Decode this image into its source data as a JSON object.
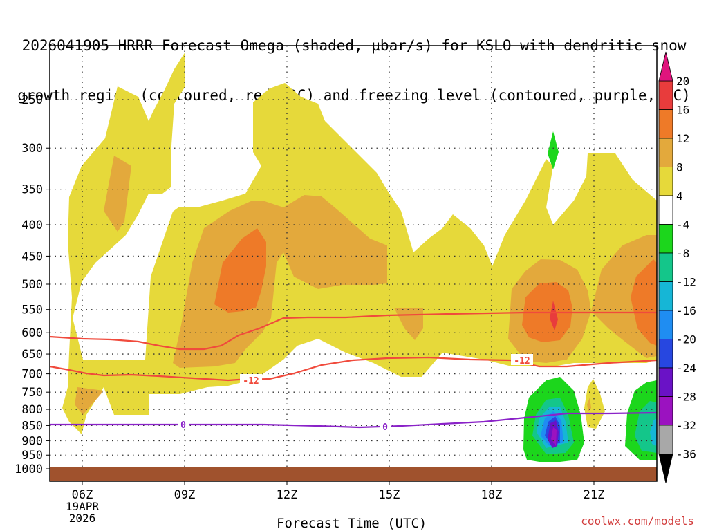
{
  "title_lines": [
    "2026041905 HRRR Forecast Omega (shaded, µbar/s) for KSLO with dendritic snow",
    "growth region (contoured, red, ºC) and freezing level (contoured, purple, ºC)"
  ],
  "credit": "coolwx.com/models",
  "chart_data": {
    "type": "heatmap",
    "title": "2026041905 HRRR Forecast Omega (shaded, µbar/s) for KSLO with dendritic snow growth region (contoured, red, ºC) and freezing level (contoured, purple, ºC)",
    "xlabel": "Forecast Time (UTC)",
    "ylabel": "",
    "x_ticks": [
      "06Z",
      "09Z",
      "12Z",
      "15Z",
      "18Z",
      "21Z"
    ],
    "x_tick_date": [
      "19APR",
      "2026"
    ],
    "y_ticks": [
      250,
      300,
      350,
      400,
      450,
      500,
      550,
      600,
      650,
      700,
      750,
      800,
      850,
      900,
      950,
      1000
    ],
    "y_scale": "log",
    "y_reversed": true,
    "colorbar": {
      "levels": [
        20,
        16,
        12,
        8,
        4,
        -4,
        -8,
        -12,
        -16,
        -20,
        -24,
        -28,
        -32,
        -36
      ],
      "colors": [
        "#e83c3c",
        "#ee7a28",
        "#e3a93c",
        "#e6d93a",
        "#ffffff",
        "#1cd61c",
        "#14c68a",
        "#16b6d6",
        "#1f8df2",
        "#2747e0",
        "#6a12c6",
        "#9b12c0",
        "#a8a8a8"
      ],
      "top_extend_color": "#e0157d",
      "bottom_extend_color": "#000000"
    },
    "contours": [
      {
        "name": "-12 ºC",
        "color": "#f04a3c",
        "label": "-12"
      },
      {
        "name": "0 ºC",
        "color": "#8a22c8",
        "label": "0"
      }
    ],
    "grid": true
  }
}
